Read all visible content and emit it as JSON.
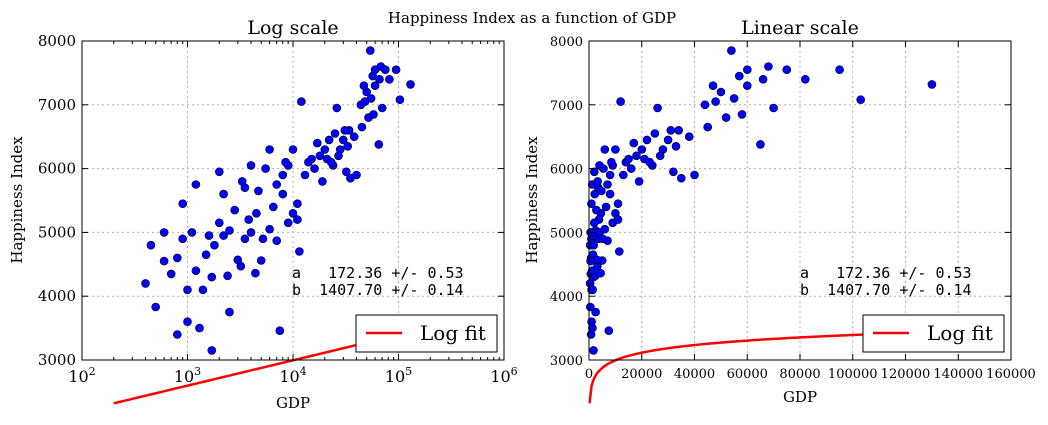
{
  "figure": {
    "suptitle": "Happiness Index as a function of GDP"
  },
  "chart_data": [
    {
      "type": "scatter",
      "title": "Log scale",
      "xlabel": "GDP",
      "ylabel": "Happiness Index",
      "xscale": "log",
      "xlim": [
        100,
        1000000
      ],
      "ylim": [
        3000,
        8000
      ],
      "x_ticks": [
        100,
        1000,
        10000,
        100000,
        1000000
      ],
      "x_tick_labels": [
        {
          "base": "10",
          "exp": "2"
        },
        {
          "base": "10",
          "exp": "3"
        },
        {
          "base": "10",
          "exp": "4"
        },
        {
          "base": "10",
          "exp": "5"
        },
        {
          "base": "10",
          "exp": "6"
        }
      ],
      "y_ticks": [
        3000,
        4000,
        5000,
        6000,
        7000,
        8000
      ],
      "y_tick_labels": [
        "3000",
        "4000",
        "5000",
        "6000",
        "7000",
        "8000"
      ],
      "grid": true,
      "legend": {
        "label": "Log fit",
        "position": "lower-right"
      },
      "annotation": [
        "a   172.36 +/- 0.53",
        "b  1407.70 +/- 0.14"
      ],
      "fit": {
        "name": "Log fit",
        "color": "#ff0000",
        "x_range": [
          200,
          150000
        ],
        "a": 172.36,
        "b": 1407.7
      },
      "points_color": "#0000ff"
    },
    {
      "type": "scatter",
      "title": "Linear scale",
      "xlabel": "GDP",
      "ylabel": "Happiness Index",
      "xscale": "linear",
      "xlim": [
        0,
        160000
      ],
      "ylim": [
        3000,
        8000
      ],
      "x_ticks": [
        0,
        20000,
        40000,
        60000,
        80000,
        100000,
        120000,
        140000,
        160000
      ],
      "x_tick_labels": [
        "0",
        "20000",
        "40000",
        "60000",
        "80000",
        "100000",
        "120000",
        "140000",
        "160000"
      ],
      "y_ticks": [
        3000,
        4000,
        5000,
        6000,
        7000,
        8000
      ],
      "y_tick_labels": [
        "3000",
        "4000",
        "5000",
        "6000",
        "7000",
        "8000"
      ],
      "grid": true,
      "legend": {
        "label": "Log fit",
        "position": "lower-right"
      },
      "annotation": [
        "a   172.36 +/- 0.53",
        "b  1407.70 +/- 0.14"
      ],
      "fit": {
        "name": "Log fit",
        "color": "#ff0000",
        "x_range": [
          200,
          150000
        ],
        "a": 172.36,
        "b": 1407.7
      },
      "points_color": "#0000ff"
    }
  ],
  "scatter_points": [
    [
      2500,
      3750
    ],
    [
      800,
      3400
    ],
    [
      1700,
      3150
    ],
    [
      1000,
      3600
    ],
    [
      1300,
      3500
    ],
    [
      500,
      3830
    ],
    [
      400,
      4200
    ],
    [
      700,
      4350
    ],
    [
      1000,
      4100
    ],
    [
      1700,
      4300
    ],
    [
      2400,
      4320
    ],
    [
      3200,
      4470
    ],
    [
      4400,
      4360
    ],
    [
      7500,
      3460
    ],
    [
      11500,
      4700
    ],
    [
      5000,
      4560
    ],
    [
      450,
      4800
    ],
    [
      600,
      5000
    ],
    [
      800,
      4600
    ],
    [
      900,
      4900
    ],
    [
      1200,
      4400
    ],
    [
      1500,
      4650
    ],
    [
      1800,
      4800
    ],
    [
      2200,
      4950
    ],
    [
      2500,
      5030
    ],
    [
      3000,
      4570
    ],
    [
      3500,
      4900
    ],
    [
      4000,
      5000
    ],
    [
      4500,
      5300
    ],
    [
      6000,
      5050
    ],
    [
      7000,
      4870
    ],
    [
      8000,
      5600
    ],
    [
      9000,
      5150
    ],
    [
      10000,
      5300
    ],
    [
      11000,
      5450
    ],
    [
      11000,
      5200
    ],
    [
      5200,
      4900
    ],
    [
      3800,
      5200
    ],
    [
      2200,
      5600
    ],
    [
      900,
      5450
    ],
    [
      1200,
      5750
    ],
    [
      2000,
      5950
    ],
    [
      3500,
      5700
    ],
    [
      4000,
      6050
    ],
    [
      5500,
      6000
    ],
    [
      6000,
      6300
    ],
    [
      7000,
      5750
    ],
    [
      8000,
      5900
    ],
    [
      9000,
      6050
    ],
    [
      10000,
      6300
    ],
    [
      12000,
      7050
    ],
    [
      14000,
      6100
    ],
    [
      16000,
      6000
    ],
    [
      18000,
      6200
    ],
    [
      20000,
      6300
    ],
    [
      22000,
      6450
    ],
    [
      24000,
      6050
    ],
    [
      25000,
      6550
    ],
    [
      26000,
      6950
    ],
    [
      28000,
      6300
    ],
    [
      30000,
      6450
    ],
    [
      32000,
      5950
    ],
    [
      34000,
      6600
    ],
    [
      35000,
      5850
    ],
    [
      40000,
      5900
    ],
    [
      45000,
      6650
    ],
    [
      48000,
      7050
    ],
    [
      50000,
      7200
    ],
    [
      52000,
      6800
    ],
    [
      54000,
      7850
    ],
    [
      55000,
      7100
    ],
    [
      57000,
      7450
    ],
    [
      60000,
      7300
    ],
    [
      65000,
      6380
    ],
    [
      68000,
      7600
    ],
    [
      70000,
      6950
    ],
    [
      82000,
      7400
    ],
    [
      95000,
      7550
    ],
    [
      103000,
      7080
    ],
    [
      130000,
      7320
    ],
    [
      15000,
      6150
    ],
    [
      19000,
      5800
    ],
    [
      21000,
      6150
    ],
    [
      23000,
      6100
    ],
    [
      31000,
      6600
    ],
    [
      13000,
      5900
    ],
    [
      1600,
      4950
    ],
    [
      2800,
      5350
    ],
    [
      600,
      4550
    ],
    [
      1400,
      4100
    ],
    [
      3300,
      5800
    ],
    [
      4700,
      5650
    ],
    [
      6500,
      5400
    ],
    [
      8500,
      6100
    ],
    [
      2000,
      5150
    ],
    [
      1100,
      5000
    ],
    [
      44000,
      7000
    ],
    [
      47000,
      7300
    ],
    [
      60000,
      7550
    ],
    [
      66000,
      7400
    ],
    [
      75000,
      7550
    ],
    [
      58000,
      6850
    ],
    [
      38000,
      6500
    ],
    [
      27000,
      6200
    ],
    [
      17000,
      6400
    ],
    [
      33000,
      6350
    ]
  ]
}
